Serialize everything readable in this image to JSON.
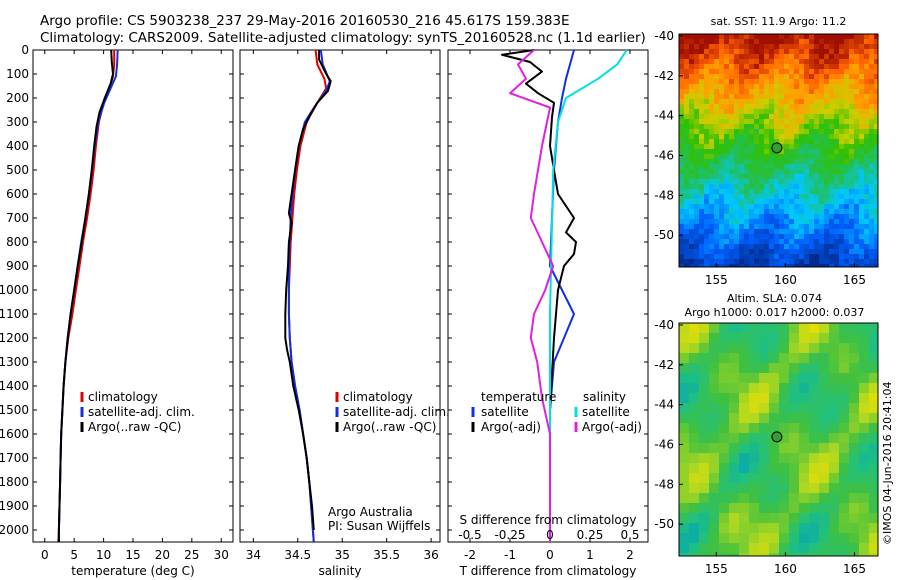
{
  "header": {
    "line1": "Argo profile: CS 5903238_237 29-May-2016 20160530_216 45.617S 159.383E",
    "line2": "Climatology: CARS2009. Satellite-adjusted climatology: synTS_20160528.nc (1.1d earlier)"
  },
  "colors": {
    "climatology": "#e00000",
    "satellite": "#1030e0",
    "argo": "#000000",
    "sal_satellite": "#00e0e0",
    "sal_argo": "#e020e0"
  },
  "chart_data": [
    {
      "type": "line",
      "name": "temperature-profile",
      "xlabel": "temperature (deg C)",
      "ylabel": "",
      "xlim": [
        -2,
        32
      ],
      "ylim": [
        2050,
        0
      ],
      "xticks": [
        "0",
        "5",
        "10",
        "15",
        "20",
        "25",
        "30"
      ],
      "yticks": [
        "0",
        "100",
        "200",
        "300",
        "400",
        "500",
        "600",
        "700",
        "800",
        "900",
        "1000",
        "1100",
        "1200",
        "1300",
        "1400",
        "1500",
        "1600",
        "1700",
        "1800",
        "1900",
        "2000"
      ],
      "legend": [
        "climatology",
        "satellite-adj. clim.",
        "Argo(..raw -QC)"
      ],
      "series": [
        {
          "name": "climatology",
          "color_key": "climatology",
          "points": [
            [
              11.8,
              0
            ],
            [
              11.8,
              60
            ],
            [
              11.6,
              110
            ],
            [
              11.0,
              160
            ],
            [
              10.0,
              220
            ],
            [
              9.2,
              300
            ],
            [
              8.7,
              400
            ],
            [
              8.3,
              500
            ],
            [
              7.8,
              600
            ],
            [
              7.2,
              700
            ],
            [
              6.5,
              800
            ],
            [
              5.9,
              900
            ],
            [
              5.3,
              1000
            ],
            [
              4.7,
              1100
            ],
            [
              4.0,
              1200
            ],
            [
              3.5,
              1300
            ],
            [
              3.2,
              1400
            ],
            [
              3.0,
              1500
            ],
            [
              2.8,
              1600
            ],
            [
              2.7,
              1700
            ],
            [
              2.6,
              1800
            ],
            [
              2.5,
              1900
            ],
            [
              2.4,
              2000
            ],
            [
              2.3,
              2050
            ]
          ]
        },
        {
          "name": "satellite-adj. clim.",
          "color_key": "satellite",
          "points": [
            [
              12.4,
              0
            ],
            [
              12.3,
              60
            ],
            [
              12.1,
              110
            ],
            [
              11.2,
              160
            ],
            [
              10.1,
              220
            ],
            [
              9.1,
              300
            ],
            [
              8.5,
              400
            ],
            [
              8.0,
              500
            ],
            [
              7.5,
              600
            ],
            [
              6.9,
              700
            ],
            [
              6.2,
              800
            ],
            [
              5.6,
              900
            ],
            [
              5.0,
              1000
            ],
            [
              4.4,
              1100
            ],
            [
              3.9,
              1200
            ],
            [
              3.5,
              1300
            ],
            [
              3.2,
              1400
            ],
            [
              3.0,
              1500
            ],
            [
              2.8,
              1600
            ],
            [
              2.7,
              1700
            ],
            [
              2.6,
              1800
            ],
            [
              2.5,
              1900
            ],
            [
              2.4,
              2000
            ],
            [
              2.4,
              2050
            ]
          ]
        },
        {
          "name": "Argo(..raw -QC)",
          "color_key": "argo",
          "points": [
            [
              11.3,
              0
            ],
            [
              11.4,
              50
            ],
            [
              11.6,
              100
            ],
            [
              11.2,
              140
            ],
            [
              10.2,
              200
            ],
            [
              9.3,
              260
            ],
            [
              8.8,
              320
            ],
            [
              8.4,
              400
            ],
            [
              8.0,
              500
            ],
            [
              7.5,
              600
            ],
            [
              6.9,
              700
            ],
            [
              6.3,
              800
            ],
            [
              5.6,
              900
            ],
            [
              5.0,
              1000
            ],
            [
              4.4,
              1100
            ],
            [
              3.9,
              1200
            ],
            [
              3.5,
              1300
            ],
            [
              3.2,
              1400
            ],
            [
              3.0,
              1500
            ],
            [
              2.8,
              1600
            ],
            [
              2.7,
              1700
            ],
            [
              2.6,
              1800
            ],
            [
              2.5,
              1900
            ],
            [
              2.4,
              2000
            ],
            [
              2.4,
              2050
            ]
          ]
        }
      ]
    },
    {
      "type": "line",
      "name": "salinity-profile",
      "xlabel": "salinity",
      "xlim": [
        33.85,
        36.1
      ],
      "ylim": [
        2050,
        0
      ],
      "xticks": [
        "34",
        "34.5",
        "35",
        "35.5",
        "36"
      ],
      "legend": [
        "climatology",
        "satellite-adj. clim.",
        "Argo(..raw -QC)"
      ],
      "annotation": [
        "Argo Australia",
        "PI: Susan Wijffels"
      ],
      "series": [
        {
          "name": "climatology",
          "color_key": "climatology",
          "points": [
            [
              34.7,
              0
            ],
            [
              34.72,
              60
            ],
            [
              34.8,
              120
            ],
            [
              34.82,
              160
            ],
            [
              34.72,
              220
            ],
            [
              34.6,
              300
            ],
            [
              34.53,
              400
            ],
            [
              34.49,
              500
            ],
            [
              34.46,
              600
            ],
            [
              34.44,
              700
            ],
            [
              34.42,
              800
            ],
            [
              34.41,
              900
            ],
            [
              34.4,
              1000
            ],
            [
              34.4,
              1100
            ],
            [
              34.41,
              1200
            ],
            [
              34.43,
              1300
            ],
            [
              34.47,
              1400
            ],
            [
              34.52,
              1500
            ],
            [
              34.56,
              1600
            ],
            [
              34.6,
              1700
            ],
            [
              34.63,
              1800
            ],
            [
              34.65,
              1900
            ],
            [
              34.67,
              2000
            ],
            [
              34.68,
              2050
            ]
          ]
        },
        {
          "name": "satellite-adj. clim.",
          "color_key": "satellite",
          "points": [
            [
              34.76,
              0
            ],
            [
              34.78,
              60
            ],
            [
              34.86,
              130
            ],
            [
              34.82,
              170
            ],
            [
              34.7,
              230
            ],
            [
              34.58,
              300
            ],
            [
              34.51,
              400
            ],
            [
              34.47,
              500
            ],
            [
              34.44,
              600
            ],
            [
              34.42,
              700
            ],
            [
              34.41,
              800
            ],
            [
              34.4,
              900
            ],
            [
              34.4,
              1000
            ],
            [
              34.4,
              1100
            ],
            [
              34.41,
              1200
            ],
            [
              34.43,
              1300
            ],
            [
              34.47,
              1400
            ],
            [
              34.52,
              1500
            ],
            [
              34.56,
              1600
            ],
            [
              34.6,
              1700
            ],
            [
              34.63,
              1800
            ],
            [
              34.65,
              1900
            ],
            [
              34.67,
              2000
            ],
            [
              34.68,
              2050
            ]
          ]
        },
        {
          "name": "Argo(..raw -QC)",
          "color_key": "argo",
          "points": [
            [
              34.74,
              0
            ],
            [
              34.74,
              40
            ],
            [
              34.82,
              100
            ],
            [
              34.87,
              130
            ],
            [
              34.84,
              170
            ],
            [
              34.72,
              220
            ],
            [
              34.64,
              270
            ],
            [
              34.56,
              330
            ],
            [
              34.51,
              400
            ],
            [
              34.47,
              500
            ],
            [
              34.43,
              600
            ],
            [
              34.4,
              680
            ],
            [
              34.43,
              720
            ],
            [
              34.4,
              800
            ],
            [
              34.39,
              900
            ],
            [
              34.37,
              1000
            ],
            [
              34.36,
              1100
            ],
            [
              34.36,
              1200
            ],
            [
              34.38,
              1250
            ],
            [
              34.41,
              1300
            ],
            [
              34.45,
              1400
            ],
            [
              34.51,
              1500
            ],
            [
              34.56,
              1600
            ],
            [
              34.6,
              1700
            ],
            [
              34.63,
              1800
            ],
            [
              34.66,
              1900
            ],
            [
              34.68,
              2000
            ]
          ]
        }
      ]
    },
    {
      "type": "line",
      "name": "difference-profile",
      "xlabel": "T difference from climatology",
      "xlabel_top": "S difference from climatology",
      "xlim": [
        -2.55,
        2.45
      ],
      "ylim": [
        2050,
        0
      ],
      "xticks": [
        "-2",
        "-1",
        "0",
        "1",
        "2"
      ],
      "xticks_top": [
        "-0.5",
        "-0.25",
        "0",
        "0.25",
        "0.5"
      ],
      "legend": {
        "temperature_title": "temperature",
        "salinity_title": "salinity",
        "temperature": [
          "satellite",
          "Argo(-adj)"
        ],
        "salinity": [
          "satellite",
          "Argo(-adj)"
        ]
      },
      "series": [
        {
          "name": "temperature satellite",
          "color_key": "satellite",
          "points": [
            [
              0.6,
              0
            ],
            [
              0.5,
              60
            ],
            [
              0.4,
              120
            ],
            [
              0.3,
              200
            ],
            [
              0.2,
              300
            ],
            [
              0.1,
              500
            ],
            [
              0.05,
              700
            ],
            [
              0.0,
              900
            ],
            [
              0.3,
              1000
            ],
            [
              0.6,
              1100
            ],
            [
              0.35,
              1200
            ],
            [
              0.1,
              1300
            ],
            [
              0.0,
              1500
            ],
            [
              0.0,
              1800
            ],
            [
              0.0,
              2050
            ]
          ]
        },
        {
          "name": "temperature Argo(-adj)",
          "color_key": "argo",
          "points": [
            [
              -0.4,
              0
            ],
            [
              -1.2,
              20
            ],
            [
              -0.5,
              50
            ],
            [
              -0.2,
              90
            ],
            [
              -0.6,
              140
            ],
            [
              -0.3,
              180
            ],
            [
              0.1,
              220
            ],
            [
              0.05,
              280
            ],
            [
              0.0,
              400
            ],
            [
              0.2,
              600
            ],
            [
              0.6,
              700
            ],
            [
              0.4,
              760
            ],
            [
              0.65,
              800
            ],
            [
              0.6,
              850
            ],
            [
              0.35,
              900
            ],
            [
              0.2,
              1000
            ],
            [
              0.1,
              1200
            ],
            [
              0.0,
              1500
            ],
            [
              0.0,
              1800
            ],
            [
              0.0,
              2050
            ]
          ]
        },
        {
          "name": "salinity satellite",
          "color_key": "sal_satellite",
          "points": [
            [
              0.48,
              0
            ],
            [
              0.42,
              60
            ],
            [
              0.3,
              120
            ],
            [
              0.1,
              200
            ],
            [
              0.05,
              300
            ],
            [
              0.02,
              500
            ],
            [
              0.01,
              800
            ],
            [
              0.0,
              1100
            ],
            [
              0.0,
              1500
            ],
            [
              0.0,
              2050
            ]
          ]
        },
        {
          "name": "salinity Argo(-adj)",
          "color_key": "sal_argo",
          "points": [
            [
              -0.1,
              0
            ],
            [
              -0.2,
              60
            ],
            [
              -0.15,
              120
            ],
            [
              -0.25,
              180
            ],
            [
              0.0,
              240
            ],
            [
              -0.05,
              400
            ],
            [
              -0.1,
              600
            ],
            [
              -0.12,
              700
            ],
            [
              -0.05,
              800
            ],
            [
              0.02,
              900
            ],
            [
              -0.03,
              1000
            ],
            [
              -0.1,
              1100
            ],
            [
              -0.12,
              1200
            ],
            [
              -0.08,
              1300
            ],
            [
              -0.05,
              1450
            ],
            [
              0.0,
              1600
            ],
            [
              0.0,
              1800
            ],
            [
              0.0,
              2050
            ]
          ]
        }
      ]
    },
    {
      "type": "heatmap",
      "name": "sst-map",
      "title": "sat. SST: 11.9 Argo: 11.2",
      "xlim": [
        152.3,
        166.7
      ],
      "ylim": [
        -51.6,
        -39.9
      ],
      "xticks": [
        "155",
        "160",
        "165"
      ],
      "yticks": [
        "-40",
        "-42",
        "-44",
        "-46",
        "-48",
        "-50"
      ],
      "marker": [
        159.383,
        -45.617
      ]
    },
    {
      "type": "heatmap",
      "name": "sla-map",
      "title_lines": [
        "Altim. SLA: 0.074",
        "Argo h1000: 0.017 h2000: 0.037"
      ],
      "xlim": [
        152.3,
        166.7
      ],
      "ylim": [
        -51.6,
        -39.9
      ],
      "xticks": [
        "155",
        "160",
        "165"
      ],
      "yticks": [
        "-40",
        "-42",
        "-44",
        "-46",
        "-48",
        "-50"
      ],
      "marker": [
        159.383,
        -45.617
      ]
    }
  ],
  "credit": "©IMOS 04-Jun-2016 20:41:04"
}
